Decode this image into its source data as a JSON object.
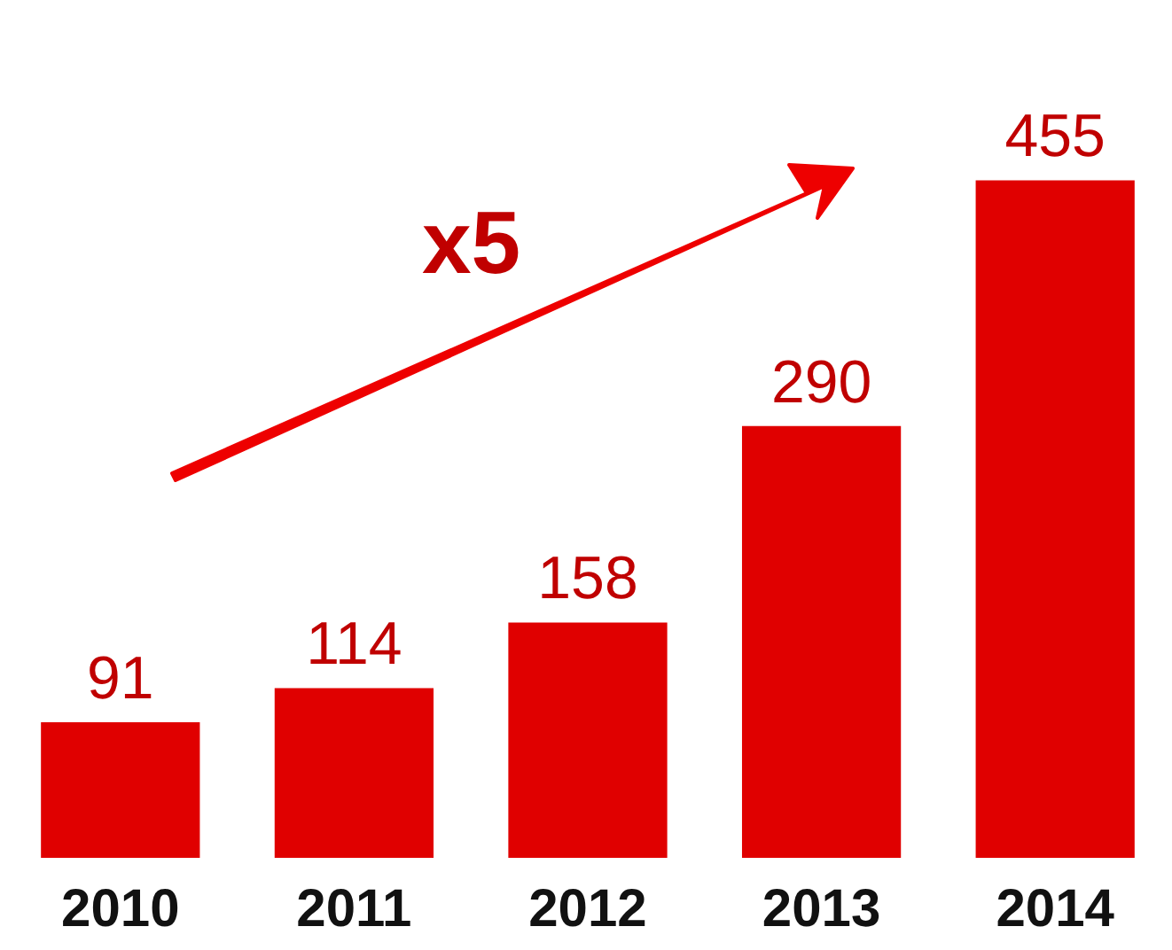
{
  "chart_data": {
    "type": "bar",
    "categories": [
      "2010",
      "2011",
      "2012",
      "2013",
      "2014"
    ],
    "values": [
      91,
      114,
      158,
      290,
      455
    ],
    "color": "#e00000",
    "data_labels": true,
    "annotations": [
      "x5"
    ]
  }
}
